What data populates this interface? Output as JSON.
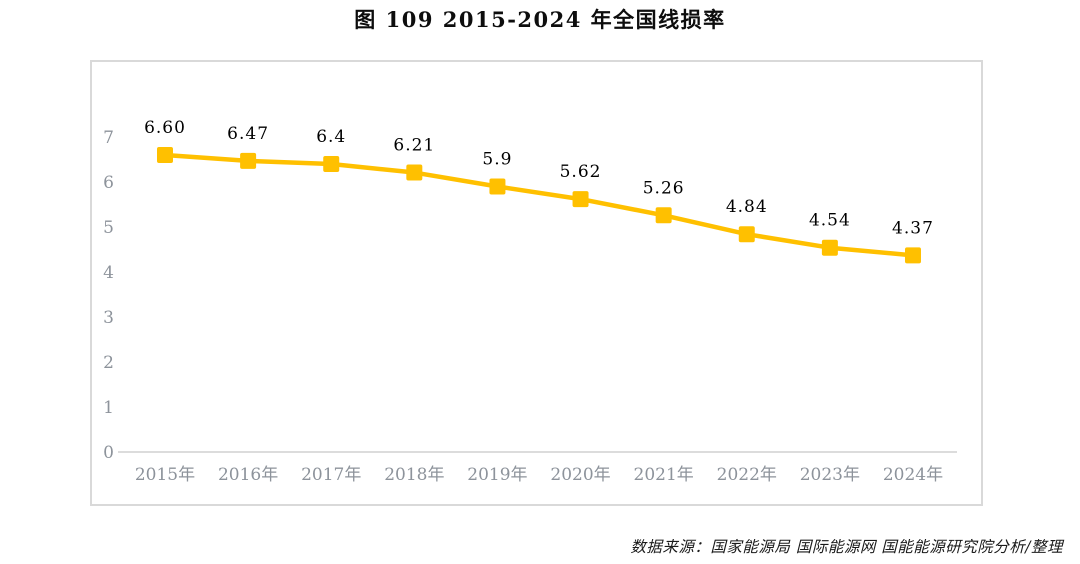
{
  "page": {
    "title": "图 109 2015-2024 年全国线损率",
    "source_note": "数据来源：国家能源局 国际能源网 国能能源研究院分析/整理"
  },
  "chart_data": {
    "type": "line",
    "title": "图 109 2015-2024 年全国线损率",
    "categories": [
      "2015年",
      "2016年",
      "2017年",
      "2018年",
      "2019年",
      "2020年",
      "2021年",
      "2022年",
      "2023年",
      "2024年"
    ],
    "series": [
      {
        "name": "全国线损率",
        "values": [
          6.6,
          6.47,
          6.4,
          6.21,
          5.9,
          5.62,
          5.26,
          4.84,
          4.54,
          4.37
        ],
        "data_labels": [
          "6.60",
          "6.47",
          "6.4",
          "6.21",
          "5.9",
          "5.62",
          "5.26",
          "4.84",
          "4.54",
          "4.37"
        ]
      }
    ],
    "xlabel": "",
    "ylabel": "",
    "ylim": [
      0,
      7
    ],
    "y_ticks": [
      0,
      1,
      2,
      3,
      4,
      5,
      6,
      7
    ],
    "grid": false,
    "legend": "none",
    "marker": "square",
    "colors": {
      "line": "#FFC000",
      "marker": "#FFC000",
      "axis_text": "#8D939B",
      "data_label_text": "#000000",
      "axis_line": "#C6C6C6",
      "frame_border": "#D9D9D9"
    },
    "source_note": "数据来源：国家能源局 国际能源网 国能能源研究院分析/整理"
  }
}
